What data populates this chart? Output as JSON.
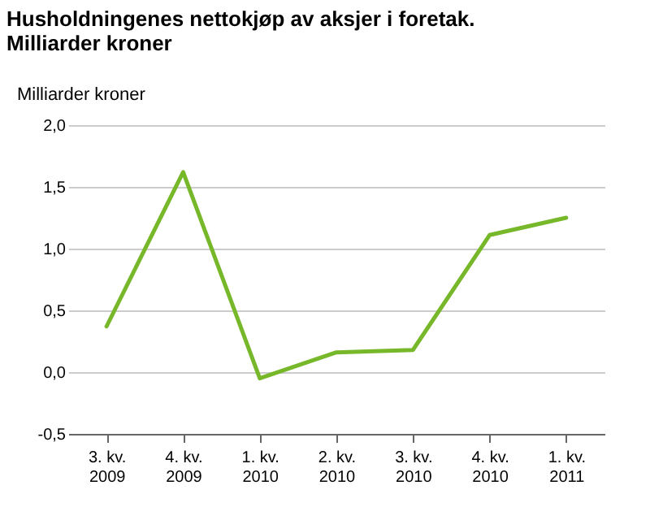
{
  "chart_data": {
    "type": "line",
    "title": "Husholdningenes nettokjøp av aksjer i foretak. Milliarder kroner",
    "ylabel": "Milliarder kroner",
    "categories": [
      "3. kv.\n2009",
      "4. kv.\n2009",
      "1. kv.\n2010",
      "2. kv.\n2010",
      "3. kv.\n2010",
      "4. kv.\n2010",
      "1. kv.\n2011"
    ],
    "series": [
      {
        "color": "#77b82a",
        "values": [
          0.37,
          1.62,
          -0.05,
          0.16,
          0.18,
          1.11,
          1.25
        ]
      }
    ],
    "ylim": [
      -0.5,
      2.0
    ],
    "yticks": [
      {
        "value": -0.5,
        "label": "-0,5"
      },
      {
        "value": 0,
        "label": "0,0"
      },
      {
        "value": 0.5,
        "label": "0,5"
      },
      {
        "value": 1,
        "label": "1,0"
      },
      {
        "value": 1.5,
        "label": "1,5"
      },
      {
        "value": 2,
        "label": "2,0"
      }
    ],
    "grid": "y",
    "line_style": "solid",
    "marker": "none"
  }
}
